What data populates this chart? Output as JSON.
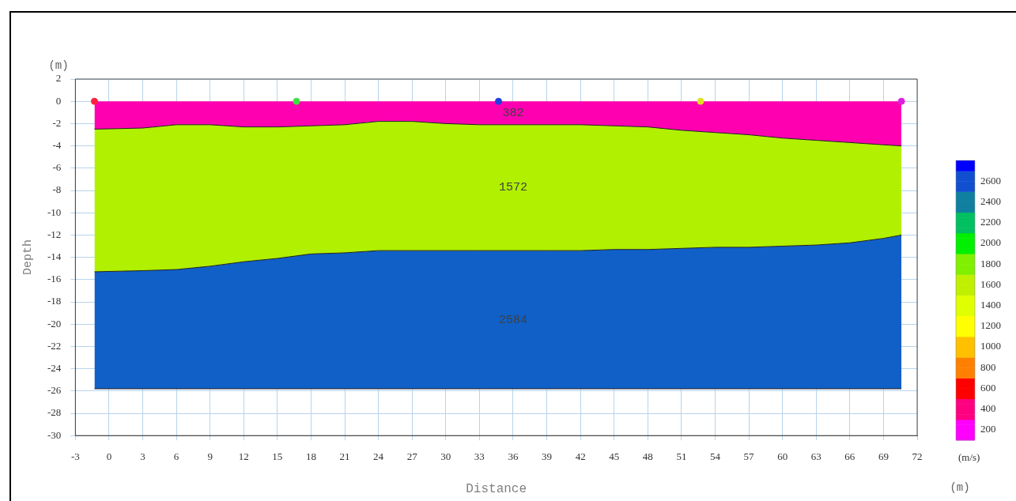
{
  "chart_data": {
    "type": "area",
    "stacked": true,
    "xlabel": "Distance",
    "ylabel": "Depth",
    "clabel": "(m/s)",
    "annotations": [
      "(m)",
      "(m)",
      "382",
      "1572",
      "2584"
    ],
    "x": [
      -1.3,
      3,
      6,
      9,
      12,
      15,
      18,
      21,
      24,
      27,
      30,
      33,
      36,
      39,
      42,
      45,
      48,
      51,
      54,
      57,
      60,
      63,
      66,
      69,
      70.6
    ],
    "series": [
      {
        "color": "#ff00b0",
        "values": [
          -2.5,
          -2.4,
          -2.1,
          -2.1,
          -2.3,
          -2.3,
          -2.2,
          -2.1,
          -1.8,
          -1.8,
          -2.0,
          -2.1,
          -2.1,
          -2.1,
          -2.1,
          -2.2,
          -2.3,
          -2.6,
          -2.8,
          -3.0,
          -3.3,
          -3.5,
          -3.7,
          -3.9,
          -4.0
        ]
      },
      {
        "color": "#b0f000",
        "values": [
          -12.8,
          -12.8,
          -13.0,
          -12.7,
          -12.1,
          -11.8,
          -11.5,
          -11.5,
          -11.6,
          -11.6,
          -11.4,
          -11.3,
          -11.3,
          -11.3,
          -11.3,
          -11.1,
          -11.0,
          -10.6,
          -10.3,
          -10.1,
          -9.7,
          -9.4,
          -9.0,
          -8.4,
          -8.0
        ]
      },
      {
        "color": "#1060c8",
        "values": [
          -10.5,
          -10.6,
          -10.7,
          -11.0,
          -11.4,
          -11.7,
          -12.1,
          -12.2,
          -12.4,
          -12.4,
          -12.4,
          -12.4,
          -12.4,
          -12.4,
          -12.4,
          -12.5,
          -12.5,
          -12.6,
          -12.7,
          -12.7,
          -12.8,
          -12.9,
          -13.1,
          -13.5,
          -13.8
        ]
      },
      {
        "type": "scatter",
        "marker": "circle",
        "x": [
          -1.3,
          16.7,
          34.7,
          52.7,
          70.6
        ],
        "values": [
          0,
          0,
          0,
          0,
          0
        ],
        "colors": [
          "#ff2040",
          "#40e040",
          "#2040e0",
          "#e0e020",
          "#e020e0"
        ]
      }
    ],
    "xlim": [
      -3,
      72
    ],
    "xticks": [
      -3,
      0,
      3,
      6,
      9,
      12,
      15,
      18,
      21,
      24,
      27,
      30,
      33,
      36,
      39,
      42,
      45,
      48,
      51,
      54,
      57,
      60,
      63,
      66,
      69,
      72
    ],
    "ylim": [
      -30,
      2
    ],
    "yticks": [
      -30,
      -28,
      -26,
      -24,
      -22,
      -20,
      -18,
      -16,
      -14,
      -12,
      -10,
      -8,
      -6,
      -4,
      -2,
      0,
      2
    ],
    "clim": [
      100,
      2800
    ],
    "cticks": [
      200,
      400,
      600,
      800,
      1000,
      1200,
      1400,
      1600,
      1800,
      2000,
      2200,
      2400,
      2600
    ],
    "grid": true,
    "legend": false
  }
}
